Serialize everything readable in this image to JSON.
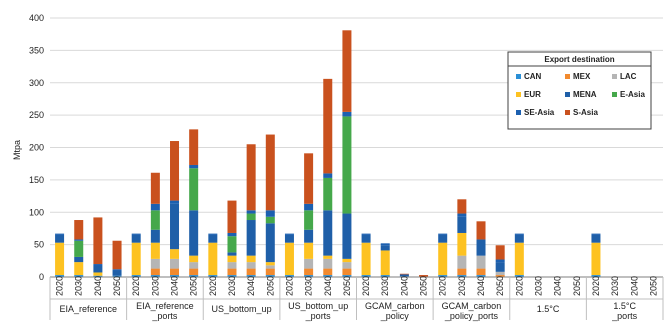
{
  "chart_data": {
    "type": "bar",
    "stacked": true,
    "ylabel": "Mtpa",
    "xlabel": "",
    "ylim": [
      0,
      400
    ],
    "yticks": [
      0,
      50,
      100,
      150,
      200,
      250,
      300,
      350,
      400
    ],
    "grid": true,
    "legend": {
      "title": "Export destination",
      "position": "right, upper middle",
      "columns": 3
    },
    "groups": [
      "EIA_reference",
      "EIA_reference\n_ports",
      "US_bottom_up",
      "US_bottom_up\n_ports",
      "GCAM_carbon\n_policy",
      "GCAM_carbon\n_policy_ports",
      "1.5°C",
      "1.5°C\n_ports"
    ],
    "years": [
      "2020",
      "2030",
      "2040",
      "2050"
    ],
    "series": [
      {
        "name": "CAN",
        "color": "#2a8fd6"
      },
      {
        "name": "MEX",
        "color": "#f28a2e"
      },
      {
        "name": "LAC",
        "color": "#b5b5b5"
      },
      {
        "name": "EUR",
        "color": "#fdc221"
      },
      {
        "name": "MENA",
        "color": "#1f5fa8"
      },
      {
        "name": "E-Asia",
        "color": "#45a84b"
      },
      {
        "name": "SE-Asia",
        "color": "#1c60b0"
      },
      {
        "name": "S-Asia",
        "color": "#c9511e"
      }
    ],
    "values": [
      [
        [
          3,
          0,
          0,
          50,
          12,
          0,
          2,
          0
        ],
        [
          3,
          0,
          0,
          20,
          8,
          25,
          2,
          30
        ],
        [
          2,
          0,
          0,
          5,
          10,
          0,
          3,
          72
        ],
        [
          2,
          0,
          0,
          0,
          8,
          0,
          2,
          44
        ]
      ],
      [
        [
          3,
          0,
          0,
          50,
          12,
          0,
          2,
          0
        ],
        [
          3,
          10,
          15,
          25,
          20,
          30,
          10,
          48
        ],
        [
          3,
          10,
          15,
          15,
          70,
          0,
          5,
          92
        ],
        [
          3,
          10,
          10,
          10,
          70,
          65,
          5,
          55
        ]
      ],
      [
        [
          3,
          0,
          0,
          50,
          12,
          0,
          2,
          0
        ],
        [
          3,
          10,
          10,
          10,
          5,
          25,
          5,
          50
        ],
        [
          3,
          10,
          10,
          10,
          55,
          10,
          5,
          102
        ],
        [
          3,
          10,
          5,
          5,
          60,
          10,
          10,
          117
        ]
      ],
      [
        [
          3,
          0,
          0,
          50,
          12,
          0,
          2,
          0
        ],
        [
          3,
          10,
          15,
          25,
          20,
          30,
          10,
          78
        ],
        [
          3,
          10,
          15,
          5,
          70,
          50,
          7,
          146
        ],
        [
          3,
          10,
          10,
          5,
          70,
          150,
          7,
          126
        ]
      ],
      [
        [
          3,
          0,
          0,
          50,
          12,
          0,
          2,
          0
        ],
        [
          3,
          0,
          0,
          38,
          8,
          0,
          3,
          0
        ],
        [
          1,
          0,
          0,
          0,
          3,
          0,
          0,
          1
        ],
        [
          0,
          0,
          0,
          0,
          0,
          0,
          0,
          3
        ]
      ],
      [
        [
          3,
          0,
          0,
          50,
          12,
          0,
          2,
          0
        ],
        [
          3,
          10,
          20,
          35,
          25,
          0,
          5,
          22
        ],
        [
          3,
          10,
          20,
          0,
          25,
          0,
          0,
          28
        ],
        [
          0,
          3,
          5,
          0,
          15,
          0,
          4,
          22
        ]
      ],
      [
        [
          3,
          0,
          0,
          50,
          12,
          0,
          2,
          0
        ],
        [
          0,
          0,
          0,
          0,
          0,
          0,
          0,
          0
        ],
        [
          0,
          0,
          0,
          0,
          0,
          0,
          0,
          0
        ],
        [
          0,
          0,
          0,
          0,
          0,
          0,
          0,
          0
        ]
      ],
      [
        [
          3,
          0,
          0,
          50,
          12,
          0,
          2,
          0
        ],
        [
          0,
          0,
          0,
          0,
          0,
          0,
          0,
          0
        ],
        [
          0,
          0,
          0,
          0,
          0,
          0,
          0,
          0
        ],
        [
          0,
          0,
          0,
          0,
          0,
          0,
          0,
          0
        ]
      ]
    ]
  }
}
